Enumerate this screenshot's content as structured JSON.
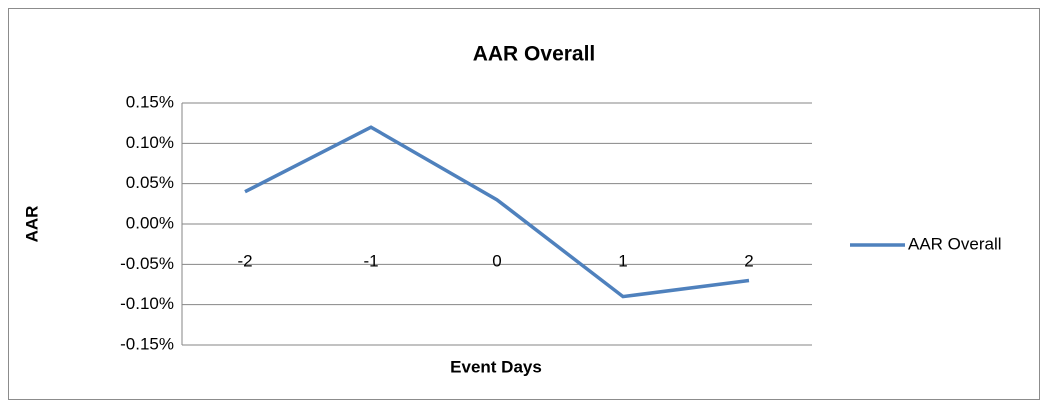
{
  "chart_data": {
    "type": "line",
    "title": "AAR Overall",
    "x_label": "Event Days",
    "y_label": "AAR",
    "categories": [
      "-2",
      "-1",
      "0",
      "1",
      "2"
    ],
    "series": [
      {
        "name": "AAR Overall",
        "color": "#4f81bd",
        "values": [
          0.04,
          0.12,
          0.03,
          -0.09,
          -0.07
        ]
      }
    ],
    "ylim": [
      -0.15,
      0.15
    ],
    "yticks": [
      {
        "value": -0.15,
        "label": "-0.15%"
      },
      {
        "value": -0.1,
        "label": "-0.10%"
      },
      {
        "value": -0.05,
        "label": "-0.05%"
      },
      {
        "value": 0,
        "label": "0.00%"
      },
      {
        "value": 0.05,
        "label": "0.05%"
      },
      {
        "value": 0.1,
        "label": "0.10%"
      },
      {
        "value": 0.15,
        "label": "0.15%"
      }
    ],
    "grid": true,
    "legend": "right"
  }
}
